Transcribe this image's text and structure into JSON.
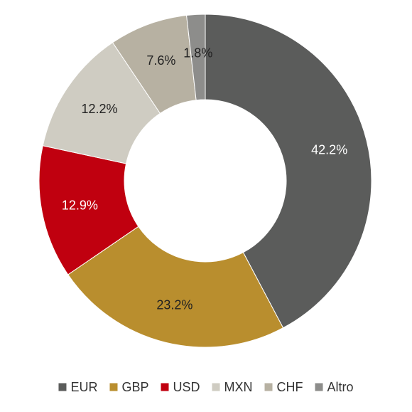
{
  "chart_data": {
    "type": "pie",
    "donut": true,
    "legend_position": "bottom",
    "title": "",
    "slices": [
      {
        "name": "EUR",
        "value": 42.2,
        "label": "42.2%",
        "color": "#5b5c5b",
        "label_color": "#ffffff"
      },
      {
        "name": "GBP",
        "value": 23.2,
        "label": "23.2%",
        "color": "#b98e2e",
        "label_color": "#222222"
      },
      {
        "name": "USD",
        "value": 12.9,
        "label": "12.9%",
        "color": "#c0000f",
        "label_color": "#ffffff"
      },
      {
        "name": "MXN",
        "value": 12.2,
        "label": "12.2%",
        "color": "#cfccc2",
        "label_color": "#222222"
      },
      {
        "name": "CHF",
        "value": 7.6,
        "label": "7.6%",
        "color": "#b7b1a2",
        "label_color": "#222222"
      },
      {
        "name": "Altro",
        "value": 1.8,
        "label": "1.8%",
        "color": "#8d8d8b",
        "label_color": "#222222"
      }
    ]
  }
}
